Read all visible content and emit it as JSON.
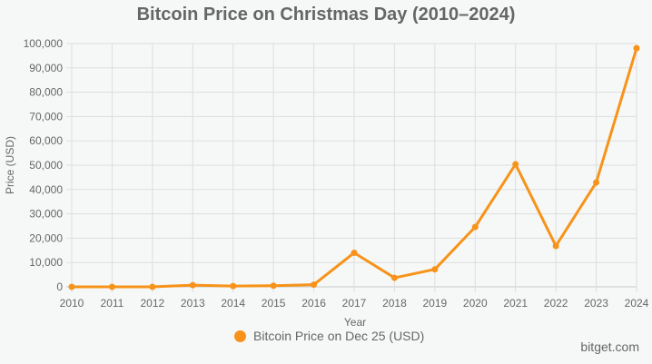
{
  "chart_data": {
    "type": "line",
    "title": "Bitcoin Price on Christmas Day (2010–2024)",
    "xlabel": "Year",
    "ylabel": "Price (USD)",
    "ylim": [
      0,
      100000
    ],
    "y_ticks": [
      0,
      10000,
      20000,
      30000,
      40000,
      50000,
      60000,
      70000,
      80000,
      90000,
      100000
    ],
    "y_tick_labels": [
      "0",
      "10,000",
      "20,000",
      "30,000",
      "40,000",
      "50,000",
      "60,000",
      "70,000",
      "80,000",
      "90,000",
      "100,000"
    ],
    "categories": [
      "2010",
      "2011",
      "2012",
      "2013",
      "2014",
      "2015",
      "2016",
      "2017",
      "2018",
      "2019",
      "2020",
      "2021",
      "2022",
      "2023",
      "2024"
    ],
    "grid": true,
    "legend_position": "bottom",
    "series": [
      {
        "name": "Bitcoin Price on Dec 25 (USD)",
        "color": "#f7931a",
        "values": [
          0.25,
          4.2,
          13.4,
          680,
          320,
          455,
          895,
          14000,
          3700,
          7200,
          24600,
          50400,
          16800,
          42900,
          98100
        ]
      }
    ]
  },
  "watermark": "bitget.com"
}
